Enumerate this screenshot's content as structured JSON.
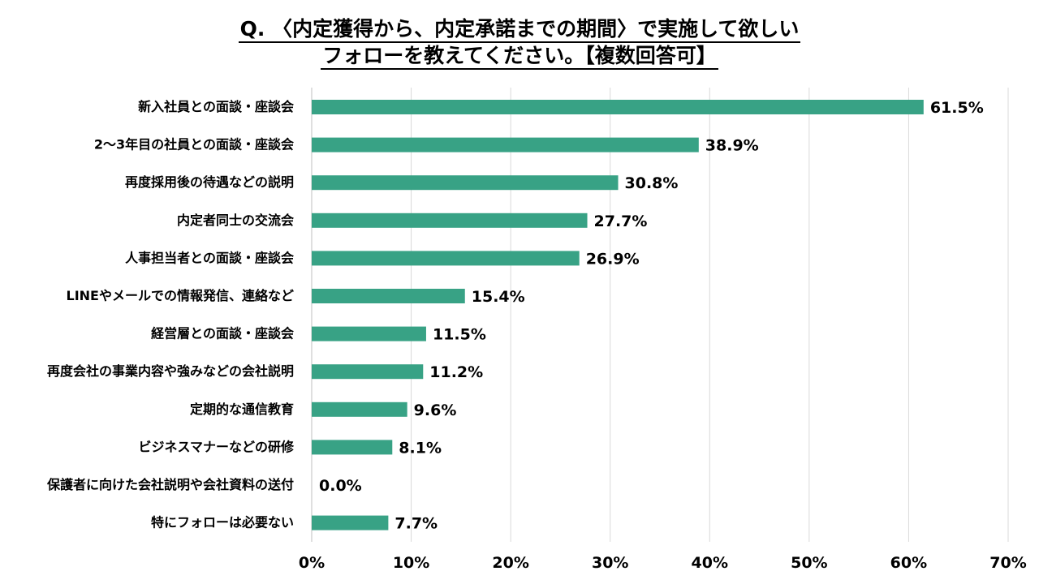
{
  "chart_data": {
    "type": "bar",
    "orientation": "horizontal",
    "title_lines": [
      "Q. 〈内定獲得から、内定承諾までの期間〉で実施して欲しい",
      "フォローを教えてください。【複数回答可】"
    ],
    "categories": [
      "新入社員との面談・座談会",
      "2～3年目の社員との面談・座談会",
      "再度採用後の待遇などの説明",
      "内定者同士の交流会",
      "人事担当者との面談・座談会",
      "LINEやメールでの情報発信、連絡など",
      "経営層との面談・座談会",
      "再度会社の事業内容や強みなどの会社説明",
      "定期的な通信教育",
      "ビジネスマナーなどの研修",
      "保護者に向けた会社説明や会社資料の送付",
      "特にフォローは必要ない"
    ],
    "values": [
      61.5,
      38.9,
      30.8,
      27.7,
      26.9,
      15.4,
      11.5,
      11.2,
      9.6,
      8.1,
      0.0,
      7.7
    ],
    "value_labels": [
      "61.5%",
      "38.9%",
      "30.8%",
      "27.7%",
      "26.9%",
      "15.4%",
      "11.5%",
      "11.2%",
      "9.6%",
      "8.1%",
      "0.0%",
      "7.7%"
    ],
    "x_ticks": [
      "0%",
      "10%",
      "20%",
      "30%",
      "40%",
      "50%",
      "60%",
      "70%"
    ],
    "xlim": [
      0,
      70
    ],
    "grid": true,
    "bar_color": "#38a285",
    "grid_color": "#d9d9d9"
  }
}
